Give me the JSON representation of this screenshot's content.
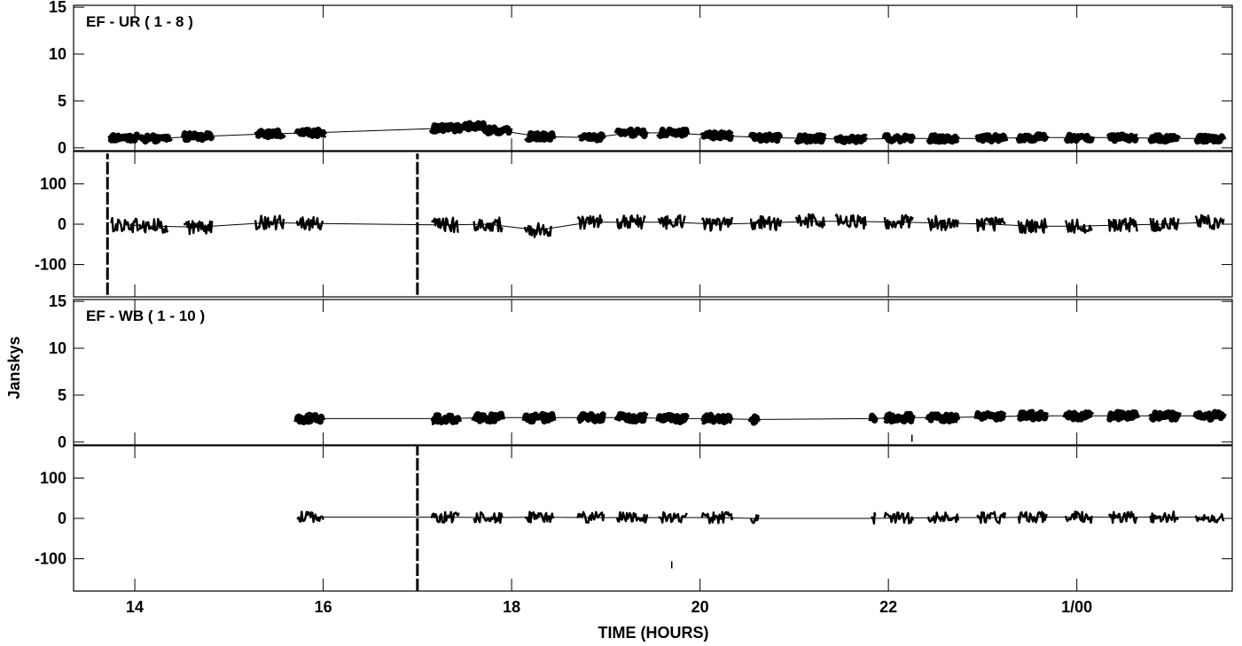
{
  "chart_data": {
    "type": "scatter",
    "xlabel": "TIME (HOURS)",
    "ylabel": "Janskys",
    "x_ticks": [
      {
        "value": 14,
        "label": "14"
      },
      {
        "value": 16,
        "label": "16"
      },
      {
        "value": 18,
        "label": "18"
      },
      {
        "value": 20,
        "label": "20"
      },
      {
        "value": 22,
        "label": "22"
      },
      {
        "value": 24,
        "label": "1/00"
      }
    ],
    "xlim": [
      13.35,
      25.65
    ],
    "panels": [
      {
        "label": "EF - UR ( 1 - 8 )",
        "quantity": "amplitude",
        "ylim": [
          -0.3,
          15.2
        ],
        "y_ticks": [
          {
            "value": 0,
            "label": "0"
          },
          {
            "value": 5,
            "label": "5"
          },
          {
            "value": 10,
            "label": "10"
          },
          {
            "value": 15,
            "label": "15"
          }
        ],
        "scans": [
          {
            "start": 13.72,
            "end": 14.05,
            "value": 1.1,
            "spread": 0.35
          },
          {
            "start": 14.05,
            "end": 14.38,
            "value": 1.0,
            "spread": 0.35
          },
          {
            "start": 14.52,
            "end": 14.82,
            "value": 1.2,
            "spread": 0.35
          },
          {
            "start": 15.28,
            "end": 15.58,
            "value": 1.5,
            "spread": 0.35
          },
          {
            "start": 15.72,
            "end": 16.02,
            "value": 1.6,
            "spread": 0.35
          },
          {
            "start": 17.15,
            "end": 17.46,
            "value": 2.1,
            "spread": 0.35
          },
          {
            "start": 17.46,
            "end": 17.72,
            "value": 2.3,
            "spread": 0.35
          },
          {
            "start": 17.68,
            "end": 17.98,
            "value": 1.9,
            "spread": 0.35
          },
          {
            "start": 18.16,
            "end": 18.44,
            "value": 1.2,
            "spread": 0.35
          },
          {
            "start": 18.72,
            "end": 18.98,
            "value": 1.1,
            "spread": 0.35
          },
          {
            "start": 19.12,
            "end": 19.44,
            "value": 1.6,
            "spread": 0.35
          },
          {
            "start": 19.56,
            "end": 19.86,
            "value": 1.6,
            "spread": 0.35
          },
          {
            "start": 20.02,
            "end": 20.34,
            "value": 1.3,
            "spread": 0.35
          },
          {
            "start": 20.54,
            "end": 20.86,
            "value": 1.1,
            "spread": 0.35
          },
          {
            "start": 21.02,
            "end": 21.32,
            "value": 1.0,
            "spread": 0.35
          },
          {
            "start": 21.44,
            "end": 21.76,
            "value": 0.9,
            "spread": 0.35
          },
          {
            "start": 21.96,
            "end": 22.26,
            "value": 1.0,
            "spread": 0.35
          },
          {
            "start": 22.42,
            "end": 22.74,
            "value": 1.0,
            "spread": 0.35
          },
          {
            "start": 22.94,
            "end": 23.24,
            "value": 1.0,
            "spread": 0.35
          },
          {
            "start": 23.38,
            "end": 23.68,
            "value": 1.1,
            "spread": 0.35
          },
          {
            "start": 23.88,
            "end": 24.16,
            "value": 1.1,
            "spread": 0.35
          },
          {
            "start": 24.34,
            "end": 24.64,
            "value": 1.1,
            "spread": 0.35
          },
          {
            "start": 24.78,
            "end": 25.08,
            "value": 1.0,
            "spread": 0.35
          },
          {
            "start": 25.26,
            "end": 25.56,
            "value": 1.0,
            "spread": 0.35
          }
        ]
      },
      {
        "label": "",
        "quantity": "phase",
        "ylim": [
          -180,
          180
        ],
        "y_ticks": [
          {
            "value": -100,
            "label": "-100"
          },
          {
            "value": 0,
            "label": "0"
          },
          {
            "value": 100,
            "label": "100"
          }
        ],
        "scans": [
          {
            "start": 13.75,
            "end": 14.05,
            "value": -2,
            "spread": 18
          },
          {
            "start": 14.05,
            "end": 14.35,
            "value": -5,
            "spread": 18
          },
          {
            "start": 14.52,
            "end": 14.82,
            "value": -7,
            "spread": 18
          },
          {
            "start": 15.28,
            "end": 15.58,
            "value": 4,
            "spread": 18
          },
          {
            "start": 15.72,
            "end": 16.0,
            "value": 2,
            "spread": 18
          },
          {
            "start": 17.15,
            "end": 17.44,
            "value": -2,
            "spread": 18
          },
          {
            "start": 17.6,
            "end": 17.9,
            "value": 0,
            "spread": 18
          },
          {
            "start": 18.14,
            "end": 18.42,
            "value": -15,
            "spread": 18
          },
          {
            "start": 18.7,
            "end": 18.96,
            "value": 5,
            "spread": 18
          },
          {
            "start": 19.12,
            "end": 19.42,
            "value": 5,
            "spread": 18
          },
          {
            "start": 19.56,
            "end": 19.84,
            "value": 5,
            "spread": 18
          },
          {
            "start": 20.02,
            "end": 20.34,
            "value": 0,
            "spread": 18
          },
          {
            "start": 20.54,
            "end": 20.86,
            "value": 3,
            "spread": 18
          },
          {
            "start": 21.02,
            "end": 21.32,
            "value": 7,
            "spread": 18
          },
          {
            "start": 21.44,
            "end": 21.76,
            "value": 7,
            "spread": 18
          },
          {
            "start": 21.96,
            "end": 22.26,
            "value": 5,
            "spread": 18
          },
          {
            "start": 22.42,
            "end": 22.74,
            "value": 3,
            "spread": 18
          },
          {
            "start": 22.94,
            "end": 23.24,
            "value": 0,
            "spread": 18
          },
          {
            "start": 23.38,
            "end": 23.68,
            "value": -5,
            "spread": 18
          },
          {
            "start": 23.88,
            "end": 24.16,
            "value": -5,
            "spread": 18
          },
          {
            "start": 24.34,
            "end": 24.64,
            "value": -2,
            "spread": 18
          },
          {
            "start": 24.78,
            "end": 25.08,
            "value": 0,
            "spread": 18
          },
          {
            "start": 25.26,
            "end": 25.56,
            "value": 5,
            "spread": 18
          }
        ],
        "spikes": [
          {
            "x": 13.71,
            "from": -175,
            "to": 175
          },
          {
            "x": 17.0,
            "from": -175,
            "to": 175
          }
        ]
      },
      {
        "label": "EF - WB ( 1 - 10 )",
        "quantity": "amplitude",
        "ylim": [
          -0.3,
          15.2
        ],
        "y_ticks": [
          {
            "value": 0,
            "label": "0"
          },
          {
            "value": 5,
            "label": "5"
          },
          {
            "value": 10,
            "label": "10"
          },
          {
            "value": 15,
            "label": "15"
          }
        ],
        "scans": [
          {
            "start": 15.72,
            "end": 16.0,
            "value": 2.5,
            "spread": 0.4
          },
          {
            "start": 17.15,
            "end": 17.44,
            "value": 2.5,
            "spread": 0.4
          },
          {
            "start": 17.6,
            "end": 17.9,
            "value": 2.6,
            "spread": 0.4
          },
          {
            "start": 18.14,
            "end": 18.44,
            "value": 2.6,
            "spread": 0.4
          },
          {
            "start": 18.7,
            "end": 18.98,
            "value": 2.6,
            "spread": 0.4
          },
          {
            "start": 19.12,
            "end": 19.44,
            "value": 2.6,
            "spread": 0.4
          },
          {
            "start": 19.56,
            "end": 19.86,
            "value": 2.5,
            "spread": 0.4
          },
          {
            "start": 20.02,
            "end": 20.34,
            "value": 2.5,
            "spread": 0.4
          },
          {
            "start": 20.54,
            "end": 20.62,
            "value": 2.4,
            "spread": 0.4
          },
          {
            "start": 21.82,
            "end": 21.86,
            "value": 2.5,
            "spread": 0.4
          },
          {
            "start": 21.96,
            "end": 22.26,
            "value": 2.6,
            "spread": 0.4
          },
          {
            "start": 22.42,
            "end": 22.74,
            "value": 2.6,
            "spread": 0.4
          },
          {
            "start": 22.94,
            "end": 23.24,
            "value": 2.7,
            "spread": 0.4
          },
          {
            "start": 23.38,
            "end": 23.68,
            "value": 2.8,
            "spread": 0.4
          },
          {
            "start": 23.88,
            "end": 24.16,
            "value": 2.8,
            "spread": 0.4
          },
          {
            "start": 24.34,
            "end": 24.64,
            "value": 2.8,
            "spread": 0.4
          },
          {
            "start": 24.78,
            "end": 25.08,
            "value": 2.8,
            "spread": 0.4
          },
          {
            "start": 25.26,
            "end": 25.56,
            "value": 2.8,
            "spread": 0.4
          }
        ],
        "outliers": [
          {
            "x": 22.25,
            "value": 0.4
          }
        ]
      },
      {
        "label": "",
        "quantity": "phase",
        "ylim": [
          -180,
          180
        ],
        "y_ticks": [
          {
            "value": -100,
            "label": "-100"
          },
          {
            "value": 0,
            "label": "0"
          },
          {
            "value": 100,
            "label": "100"
          }
        ],
        "scans": [
          {
            "start": 15.72,
            "end": 16.0,
            "value": 3,
            "spread": 14
          },
          {
            "start": 17.15,
            "end": 17.44,
            "value": 3,
            "spread": 14
          },
          {
            "start": 17.6,
            "end": 17.9,
            "value": 2,
            "spread": 14
          },
          {
            "start": 18.14,
            "end": 18.44,
            "value": 3,
            "spread": 14
          },
          {
            "start": 18.7,
            "end": 18.98,
            "value": 2,
            "spread": 14
          },
          {
            "start": 19.12,
            "end": 19.44,
            "value": 2,
            "spread": 14
          },
          {
            "start": 19.56,
            "end": 19.86,
            "value": 2,
            "spread": 14
          },
          {
            "start": 20.02,
            "end": 20.34,
            "value": 2,
            "spread": 14
          },
          {
            "start": 20.54,
            "end": 20.62,
            "value": 0,
            "spread": 14
          },
          {
            "start": 21.82,
            "end": 21.86,
            "value": 0,
            "spread": 14
          },
          {
            "start": 21.96,
            "end": 22.26,
            "value": 1,
            "spread": 14
          },
          {
            "start": 22.42,
            "end": 22.74,
            "value": 2,
            "spread": 14
          },
          {
            "start": 22.94,
            "end": 23.24,
            "value": 2,
            "spread": 14
          },
          {
            "start": 23.38,
            "end": 23.68,
            "value": 3,
            "spread": 14
          },
          {
            "start": 23.88,
            "end": 24.16,
            "value": 3,
            "spread": 14
          },
          {
            "start": 24.34,
            "end": 24.64,
            "value": 3,
            "spread": 14
          },
          {
            "start": 24.78,
            "end": 25.08,
            "value": 3,
            "spread": 14
          },
          {
            "start": 25.26,
            "end": 25.56,
            "value": 3,
            "spread": 14
          }
        ],
        "spikes": [
          {
            "x": 17.0,
            "from": -180,
            "to": 180
          }
        ],
        "outliers": [
          {
            "x": 19.7,
            "value": -115
          }
        ]
      }
    ]
  }
}
